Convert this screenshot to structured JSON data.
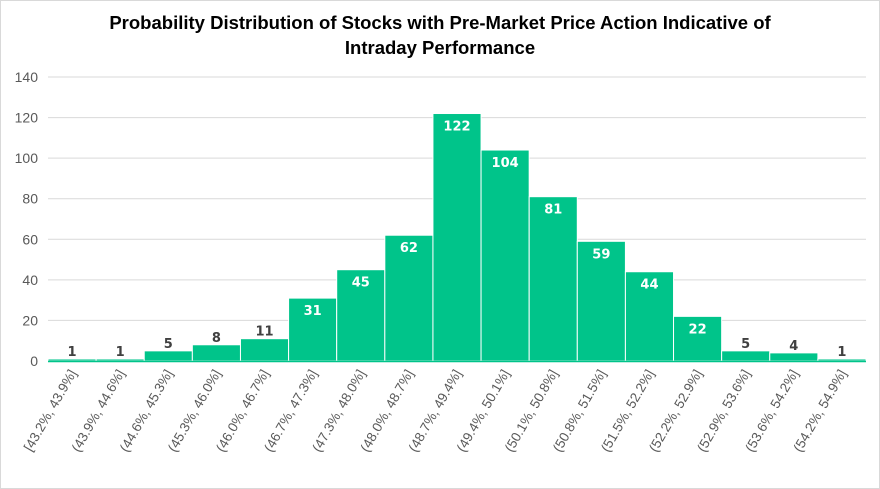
{
  "chart_data": {
    "type": "bar",
    "title_lines": [
      "Probability Distribution of Stocks with Pre-Market Price Action Indicative of",
      "Intraday Performance"
    ],
    "categories": [
      "[43.2%, 43.9%]",
      "(43.9%, 44.6%]",
      "(44.6%, 45.3%]",
      "(45.3%, 46.0%]",
      "(46.0%, 46.7%]",
      "(46.7%, 47.3%]",
      "(47.3%, 48.0%]",
      "(48.0%, 48.7%]",
      "(48.7%, 49.4%]",
      "(49.4%, 50.1%]",
      "(50.1%, 50.8%]",
      "(50.8%, 51.5%]",
      "(51.5%, 52.2%]",
      "(52.2%, 52.9%]",
      "(52.9%, 53.6%]",
      "(53.6%, 54.2%]",
      "(54.2%, 54.9%]"
    ],
    "values": [
      1,
      1,
      5,
      8,
      11,
      31,
      45,
      62,
      122,
      104,
      81,
      59,
      44,
      22,
      5,
      4,
      1
    ],
    "ylim": [
      0,
      140
    ],
    "yticks": [
      "0",
      "20",
      "40",
      "60",
      "80",
      "100",
      "120",
      "140"
    ],
    "grid": true,
    "bar_color": "#00c48a",
    "label_color_inside": "#ffffff",
    "label_color_outside": "#404040"
  }
}
